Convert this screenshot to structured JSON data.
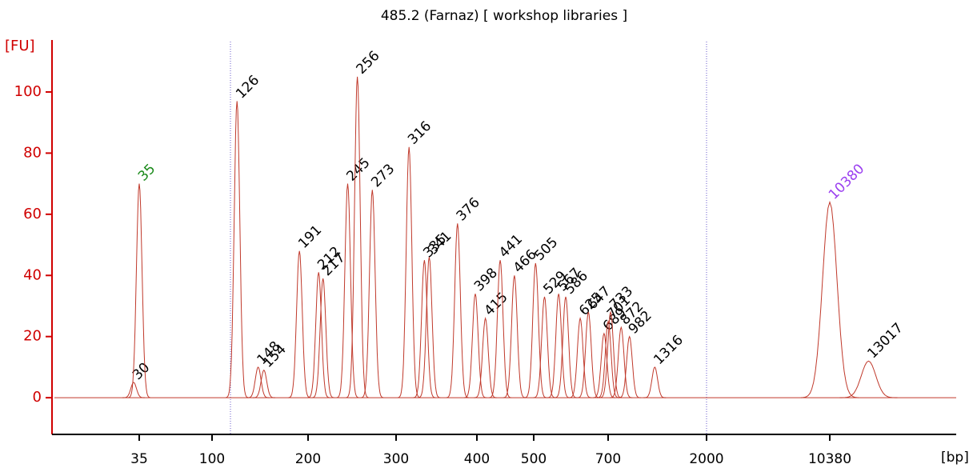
{
  "chart_data": {
    "type": "electropherogram",
    "title": "485.2 (Farnaz)  [ workshop libraries ]",
    "y_label": "[FU]",
    "x_label": "[bp]",
    "x": [
      30,
      35,
      126,
      148,
      154,
      191,
      212,
      217,
      245,
      256,
      273,
      316,
      335,
      341,
      376,
      398,
      415,
      441,
      466,
      505,
      529,
      567,
      586,
      625,
      647,
      689,
      701,
      733,
      872,
      982,
      1316,
      10380,
      13017
    ],
    "values": [
      5,
      70,
      97,
      10,
      9,
      48,
      41,
      39,
      70,
      105,
      68,
      82,
      45,
      46,
      57,
      34,
      26,
      45,
      40,
      44,
      33,
      34,
      33,
      26,
      28,
      21,
      25,
      28,
      23,
      20,
      10,
      64,
      12
    ],
    "label_colors": [
      "#000000",
      "#1a8a1a",
      "#000000",
      "#000000",
      "#000000",
      "#000000",
      "#000000",
      "#000000",
      "#000000",
      "#000000",
      "#000000",
      "#000000",
      "#000000",
      "#000000",
      "#000000",
      "#000000",
      "#000000",
      "#000000",
      "#000000",
      "#000000",
      "#000000",
      "#000000",
      "#000000",
      "#000000",
      "#000000",
      "#000000",
      "#000000",
      "#000000",
      "#000000",
      "#000000",
      "#000000",
      "#9b3ff0",
      "#000000"
    ],
    "color": "#c0392b",
    "ylim": [
      -12,
      117
    ],
    "yticks": [
      0,
      20,
      40,
      60,
      80,
      100
    ],
    "xticks": [
      35,
      100,
      200,
      300,
      400,
      500,
      700,
      2000,
      10380
    ]
  }
}
